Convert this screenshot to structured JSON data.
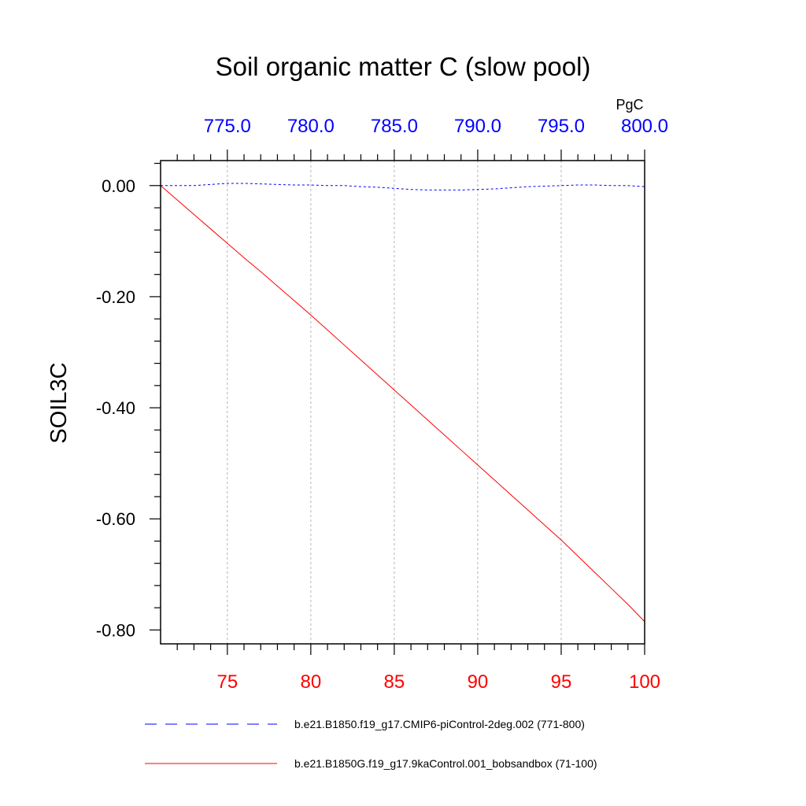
{
  "chart_data": {
    "type": "line",
    "title": "Soil organic matter C (slow pool)",
    "ylabel": "SOIL3C",
    "units": "PgC",
    "ylim": [
      -0.825,
      0.045
    ],
    "grid": "vertical-dashed",
    "bottom_axis": {
      "color": "#ff0000",
      "range": [
        71,
        100
      ],
      "ticks": [
        75,
        80,
        85,
        90,
        95,
        100
      ],
      "tick_labels": [
        "75",
        "80",
        "85",
        "90",
        "95",
        "100"
      ]
    },
    "top_axis": {
      "color": "#0000ff",
      "range": [
        771,
        800
      ],
      "ticks": [
        775,
        780,
        785,
        790,
        795,
        800
      ],
      "tick_labels": [
        "775.0",
        "780.0",
        "785.0",
        "790.0",
        "795.0",
        "800.0"
      ]
    },
    "y_ticks": [
      0.0,
      -0.2,
      -0.4,
      -0.6,
      -0.8
    ],
    "y_tick_labels": [
      "0.00",
      "-0.20",
      "-0.40",
      "-0.60",
      "-0.80"
    ],
    "legend_placement": "bottom",
    "series": [
      {
        "name": "b.e21.B1850.f19_g17.CMIP6-piControl-2deg.002 (771-800)",
        "color": "#0000ff",
        "style": "dashed",
        "axis": "top",
        "x": [
          771,
          772,
          773,
          774,
          775,
          776,
          777,
          778,
          779,
          780,
          781,
          782,
          783,
          784,
          785,
          786,
          787,
          788,
          789,
          790,
          791,
          792,
          793,
          794,
          795,
          796,
          797,
          798,
          799,
          800
        ],
        "y": [
          0.0,
          0.0,
          0.0,
          0.002,
          0.004,
          0.004,
          0.003,
          0.002,
          0.001,
          0.001,
          0.0,
          0.0,
          -0.002,
          -0.003,
          -0.005,
          -0.007,
          -0.008,
          -0.008,
          -0.008,
          -0.007,
          -0.006,
          -0.004,
          -0.002,
          -0.001,
          0.0,
          0.001,
          0.001,
          0.0,
          0.0,
          -0.002
        ]
      },
      {
        "name": "b.e21.B1850G.f19_g17.9kaControl.001_bobsandbox (71-100)",
        "color": "#ff0000",
        "style": "solid",
        "axis": "bottom",
        "x": [
          71,
          72,
          73,
          74,
          75,
          76,
          77,
          78,
          79,
          80,
          81,
          82,
          83,
          84,
          85,
          86,
          87,
          88,
          89,
          90,
          91,
          92,
          93,
          94,
          95,
          96,
          97,
          98,
          99,
          100
        ],
        "y": [
          0.0,
          -0.026,
          -0.052,
          -0.078,
          -0.104,
          -0.13,
          -0.155,
          -0.181,
          -0.207,
          -0.233,
          -0.26,
          -0.287,
          -0.314,
          -0.341,
          -0.368,
          -0.395,
          -0.422,
          -0.449,
          -0.476,
          -0.503,
          -0.53,
          -0.557,
          -0.584,
          -0.611,
          -0.638,
          -0.667,
          -0.696,
          -0.725,
          -0.754,
          -0.785
        ]
      }
    ]
  }
}
